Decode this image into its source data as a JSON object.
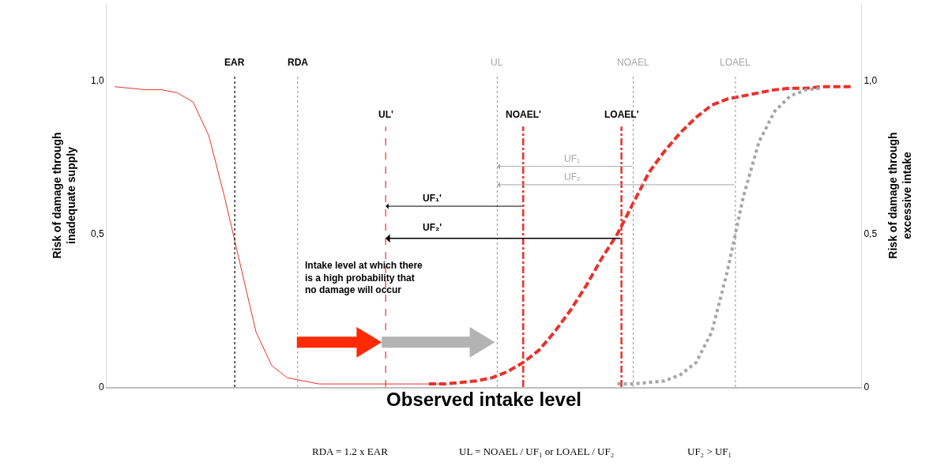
{
  "chart_data": {
    "type": "line",
    "xlabel": "Observed intake level",
    "ylabel": "Risk of damage through\ninadequate supply",
    "y2label": "Risk of damage through\nexcessive intake",
    "categories": [
      null,
      null,
      null,
      null,
      null,
      null,
      null,
      null,
      null,
      null,
      null,
      null,
      null,
      null,
      null,
      null,
      null,
      null,
      null,
      null,
      null,
      null,
      null,
      null,
      null,
      null,
      null,
      null,
      null,
      null,
      null,
      null,
      null,
      null,
      null,
      null,
      null,
      null,
      null,
      null,
      null,
      null,
      null,
      null,
      null,
      null,
      null,
      null
    ],
    "ylim": [
      0,
      1.25
    ],
    "yticks": [
      {
        "value": 0,
        "label": "0"
      },
      {
        "value": 0.5,
        "label": "0,5"
      },
      {
        "value": 1,
        "label": "1,0"
      }
    ],
    "y2lim": [
      0,
      1.25
    ],
    "y2ticks": [
      {
        "value": 0,
        "label": "0"
      },
      {
        "value": 0.5,
        "label": "0,5"
      },
      {
        "value": 1,
        "label": "1,0"
      }
    ],
    "series": [
      {
        "color": "#e8322b",
        "line_style": "solid",
        "values": [
          0.98,
          0.975,
          0.97,
          0.97,
          0.96,
          0.93,
          0.82,
          0.62,
          0.4,
          0.18,
          0.07,
          0.03,
          0.02,
          0.01,
          0.01,
          0.01,
          0.01,
          0.01,
          0.01,
          0.01,
          0.01,
          0.01,
          null,
          null,
          null,
          null,
          null,
          null,
          null,
          null,
          null,
          null,
          null,
          null,
          null,
          null,
          null,
          null,
          null,
          null,
          null,
          null,
          null,
          null,
          null,
          null,
          null,
          null
        ]
      },
      {
        "color": "#e8322b",
        "line_style": "dashed",
        "values": [
          null,
          null,
          null,
          null,
          null,
          null,
          null,
          null,
          null,
          null,
          null,
          null,
          null,
          null,
          null,
          null,
          null,
          null,
          null,
          null,
          0.01,
          0.01,
          0.015,
          0.02,
          0.03,
          0.05,
          0.08,
          0.12,
          0.18,
          0.25,
          0.33,
          0.42,
          0.5,
          0.6,
          0.7,
          0.77,
          0.83,
          0.88,
          0.92,
          0.94,
          0.95,
          0.96,
          0.97,
          0.975,
          0.975,
          0.98,
          0.98,
          0.98
        ]
      },
      {
        "color": "#a6a6a6",
        "line_style": "dotted",
        "values": [
          null,
          null,
          null,
          null,
          null,
          null,
          null,
          null,
          null,
          null,
          null,
          null,
          null,
          null,
          null,
          null,
          null,
          null,
          null,
          null,
          null,
          null,
          null,
          null,
          null,
          null,
          null,
          null,
          null,
          null,
          null,
          null,
          0.01,
          0.01,
          0.015,
          0.02,
          0.04,
          0.08,
          0.18,
          0.38,
          0.62,
          0.8,
          0.9,
          0.95,
          0.97,
          0.975,
          null,
          null
        ]
      }
    ],
    "annotations": [
      "EAR",
      "RDA",
      "UL",
      "NOAEL",
      "LOAEL",
      "UL'",
      "NOAEL'",
      "LOAEL'",
      "UF₁",
      "UF₂",
      "UF₁'",
      "UF₂'",
      "Intake level at which there is a high probability that no damage will occur",
      "RDA = 1.2 x EAR",
      "UL = NOAEL / UF₁ or LOAEL / UF₂",
      "UF₂ > UF₁"
    ]
  }
}
